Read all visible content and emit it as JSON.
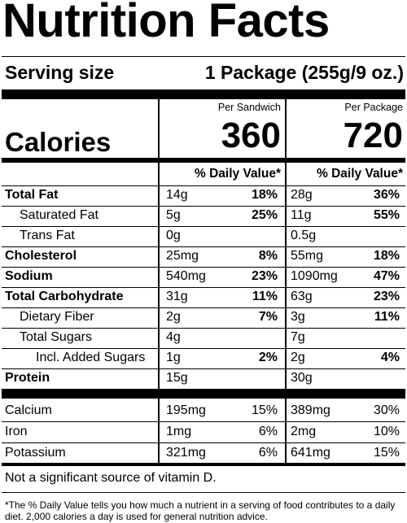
{
  "title": "Nutrition Facts",
  "serving": {
    "label": "Serving size",
    "value": "1 Package (255g/9 oz.)"
  },
  "columns": [
    {
      "header": "Per Sandwich",
      "calories": "360"
    },
    {
      "header": "Per Package",
      "calories": "720"
    }
  ],
  "calories_label": "Calories",
  "dv_header": "% Daily Value*",
  "nutrients": [
    {
      "label": "Total Fat",
      "bold": true,
      "indent": 0,
      "c1": "14g",
      "p1": "18%",
      "c2": "28g",
      "p2": "36%"
    },
    {
      "label": "Saturated Fat",
      "bold": false,
      "indent": 1,
      "c1": "5g",
      "p1": "25%",
      "c2": "11g",
      "p2": "55%"
    },
    {
      "label": "Trans Fat",
      "bold": false,
      "indent": 1,
      "c1": "0g",
      "p1": "",
      "c2": "0.5g",
      "p2": ""
    },
    {
      "label": "Cholesterol",
      "bold": true,
      "indent": 0,
      "c1": "25mg",
      "p1": "8%",
      "c2": "55mg",
      "p2": "18%"
    },
    {
      "label": "Sodium",
      "bold": true,
      "indent": 0,
      "c1": "540mg",
      "p1": "23%",
      "c2": "1090mg",
      "p2": "47%"
    },
    {
      "label": "Total Carbohydrate",
      "bold": true,
      "indent": 0,
      "c1": "31g",
      "p1": "11%",
      "c2": "63g",
      "p2": "23%"
    },
    {
      "label": "Dietary Fiber",
      "bold": false,
      "indent": 1,
      "c1": "2g",
      "p1": "7%",
      "c2": "3g",
      "p2": "11%"
    },
    {
      "label": "Total Sugars",
      "bold": false,
      "indent": 1,
      "c1": "4g",
      "p1": "",
      "c2": "7g",
      "p2": ""
    },
    {
      "label": "Incl. Added Sugars",
      "bold": false,
      "indent": 2,
      "c1": "1g",
      "p1": "2%",
      "c2": "2g",
      "p2": "4%"
    },
    {
      "label": "Protein",
      "bold": true,
      "indent": 0,
      "c1": "15g",
      "p1": "",
      "c2": "30g",
      "p2": ""
    }
  ],
  "minerals": [
    {
      "label": "Calcium",
      "c1": "195mg",
      "p1": "15%",
      "c2": "389mg",
      "p2": "30%"
    },
    {
      "label": "Iron",
      "c1": "1mg",
      "p1": "6%",
      "c2": "2mg",
      "p2": "10%"
    },
    {
      "label": "Potassium",
      "c1": "321mg",
      "p1": "6%",
      "c2": "641mg",
      "p2": "15%"
    }
  ],
  "not_significant": "Not a significant source of vitamin D.",
  "footnote": "*The % Daily Value tells you how much a nutrient in a serving of food contributes to a daily diet. 2,000 calories a day is used for general nutrition advice."
}
